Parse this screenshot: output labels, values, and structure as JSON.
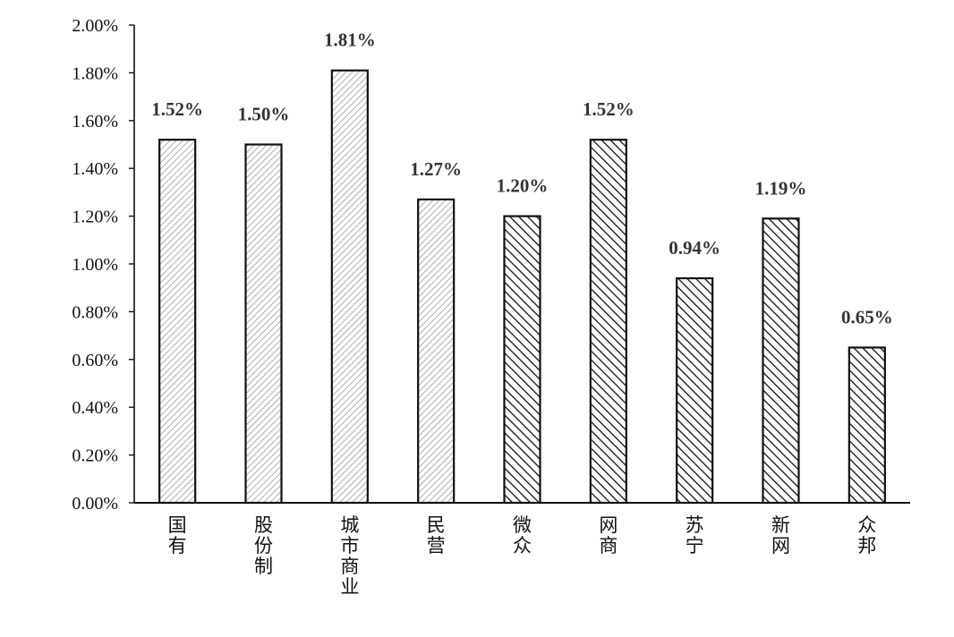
{
  "chart_data": {
    "type": "bar",
    "title": "",
    "xlabel": "",
    "ylabel": "",
    "categories": [
      "国有",
      "股份制",
      "城市商业",
      "民营",
      "微众",
      "网商",
      "苏宁",
      "新网",
      "众邦"
    ],
    "values": [
      0.0152,
      0.015,
      0.0181,
      0.0127,
      0.012,
      0.0152,
      0.0094,
      0.0119,
      0.0065
    ],
    "data_labels": [
      "1.52%",
      "1.50%",
      "1.81%",
      "1.27%",
      "1.20%",
      "1.52%",
      "0.94%",
      "1.19%",
      "0.65%"
    ],
    "patterns": [
      "light",
      "light",
      "light",
      "light",
      "dense",
      "dense",
      "dense",
      "dense",
      "dense"
    ],
    "ylim": [
      0,
      0.02
    ],
    "y_ticks": [
      0,
      0.002,
      0.004,
      0.006,
      0.008,
      0.01,
      0.012,
      0.014,
      0.016,
      0.018,
      0.02
    ],
    "y_tick_labels": [
      "0.00%",
      "0.20%",
      "0.40%",
      "0.60%",
      "0.80%",
      "1.00%",
      "1.20%",
      "1.40%",
      "1.60%",
      "1.80%",
      "2.00%"
    ],
    "grid": false,
    "legend": "none",
    "colors": {
      "bar_edge": "#111111",
      "hatch_light": "#9a9a9a",
      "hatch_dense": "#111111",
      "axis": "#111111"
    }
  }
}
